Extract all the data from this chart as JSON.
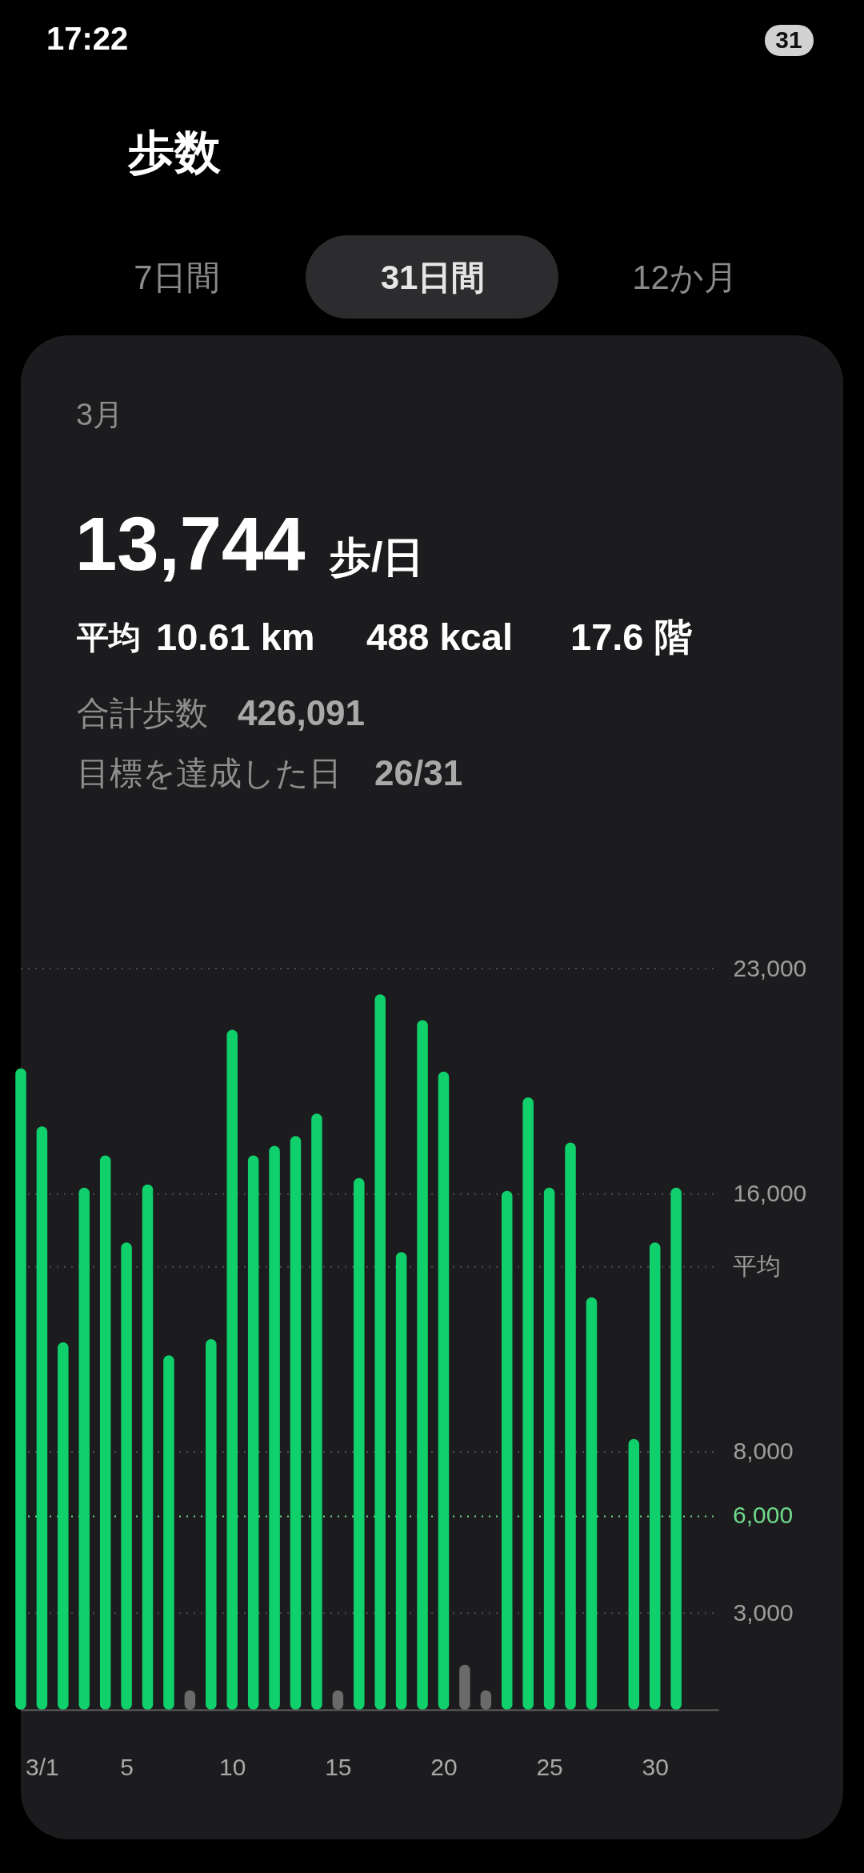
{
  "chart_data": {
    "type": "bar",
    "title": "歩数",
    "subtitle": "3月",
    "annotations": [
      "17:22",
      "31",
      "7日間",
      "31日間",
      "12か月",
      "13,744",
      "歩/日",
      "平均",
      "10.61 km",
      "488 kcal",
      "17.6 階",
      "合計歩数",
      "426,091",
      "目標を達成した日",
      "26/31"
    ],
    "x": [
      0,
      1,
      2,
      3,
      4,
      5,
      6,
      7,
      8,
      9,
      10,
      11,
      12,
      13,
      14,
      15,
      16,
      17,
      18,
      19,
      20,
      21,
      22,
      23,
      24,
      25,
      26,
      27,
      28,
      29,
      30,
      31
    ],
    "values": [
      19900,
      18100,
      11400,
      16200,
      17200,
      14500,
      16300,
      11000,
      600,
      11500,
      21100,
      17200,
      17500,
      17800,
      18500,
      600,
      16500,
      22200,
      14200,
      21400,
      19800,
      1400,
      600,
      16100,
      19000,
      16200,
      17600,
      12800,
      null,
      8400,
      14500,
      16200
    ],
    "colors": [
      "#10d06c",
      "#10d06c",
      "#10d06c",
      "#10d06c",
      "#10d06c",
      "#10d06c",
      "#10d06c",
      "#10d06c",
      "#6a6a6a",
      "#10d06c",
      "#10d06c",
      "#10d06c",
      "#10d06c",
      "#10d06c",
      "#10d06c",
      "#6a6a6a",
      "#10d06c",
      "#10d06c",
      "#10d06c",
      "#10d06c",
      "#10d06c",
      "#6a6a6a",
      "#6a6a6a",
      "#10d06c",
      "#10d06c",
      "#10d06c",
      "#10d06c",
      "#10d06c",
      "#6a6a6a",
      "#10d06c",
      "#10d06c",
      "#10d06c"
    ],
    "xlim": [
      0,
      33
    ],
    "xticks": [
      {
        "value": 1,
        "label": "3/1"
      },
      5,
      10,
      15,
      20,
      25,
      30
    ],
    "ylim": [
      0,
      23000
    ],
    "yticks": [
      {
        "value": 3000,
        "label": "3,000"
      },
      {
        "value": 8000,
        "label": "8,000"
      },
      {
        "value": 16000,
        "label": "16,000"
      },
      {
        "value": 23000,
        "label": "23,000"
      }
    ],
    "ref_lines": [
      {
        "axis": "y",
        "value": 13744,
        "label": "平均",
        "line_style": "dotted"
      },
      {
        "axis": "y",
        "value": 6000,
        "label": "6,000",
        "color": "#6edb8b",
        "line_style": "dotted"
      }
    ],
    "grid": "y"
  }
}
